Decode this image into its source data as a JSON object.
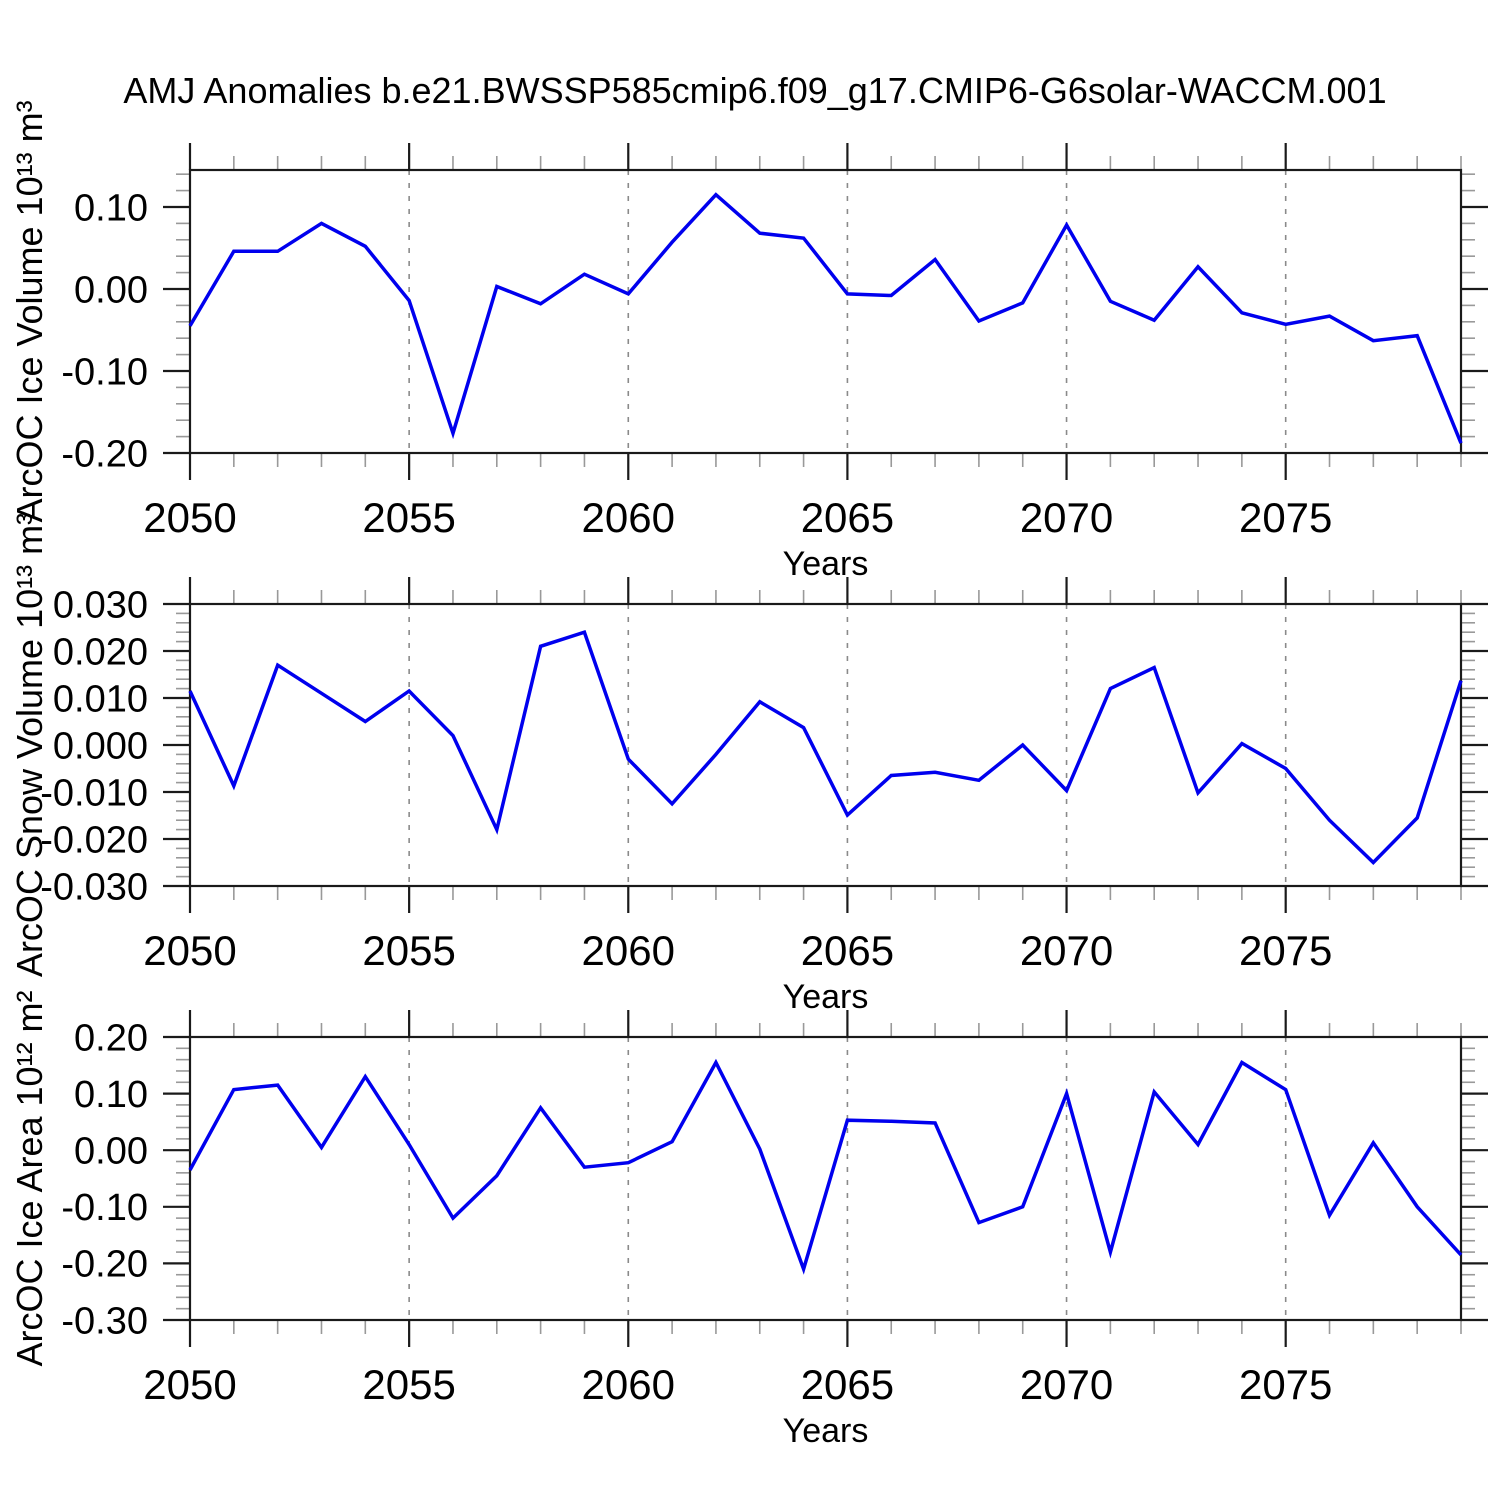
{
  "title": "AMJ Anomalies b.e21.BWSSP585cmip6.f09_g17.CMIP6-G6solar-WACCM.001",
  "colors": {
    "line": "#0000ee",
    "grid": "#8a8a8a",
    "frame": "#1a1a1a",
    "minor_tick": "#999999",
    "text": "#000000"
  },
  "chart_data": [
    {
      "type": "line",
      "name": "arcoc-ice-volume",
      "ylabel": "ArcOC Ice Volume 10¹³ m³",
      "xlabel": "Years",
      "legend": "none",
      "grid": "vertical-dashed",
      "xlim": [
        2050,
        2079
      ],
      "ylim": [
        -0.2,
        0.1451
      ],
      "xticks": [
        2050,
        2055,
        2060,
        2065,
        2070,
        2075
      ],
      "xtick_labels": [
        "2050",
        "2055",
        "2060",
        "2065",
        "2070",
        "2075"
      ],
      "x_minor_step": 1,
      "xgrid": [
        2055,
        2060,
        2065,
        2070,
        2075
      ],
      "yticks": [
        0.1,
        0.0,
        -0.1,
        -0.2
      ],
      "ytick_labels": [
        "0.10",
        "0.00",
        "-0.10",
        "-0.20"
      ],
      "y_minor_step": 0.02,
      "x": [
        2050,
        2051,
        2052,
        2053,
        2054,
        2055,
        2056,
        2057,
        2058,
        2059,
        2060,
        2061,
        2062,
        2063,
        2064,
        2065,
        2066,
        2067,
        2068,
        2069,
        2070,
        2071,
        2072,
        2073,
        2074,
        2075,
        2076,
        2077,
        2078,
        2079
      ],
      "values": [
        -0.045,
        0.046,
        0.046,
        0.08,
        0.052,
        -0.014,
        -0.176,
        0.003,
        -0.018,
        0.018,
        -0.006,
        0.057,
        0.115,
        0.068,
        0.062,
        -0.006,
        -0.008,
        0.036,
        -0.039,
        -0.017,
        0.078,
        -0.015,
        -0.038,
        0.027,
        -0.029,
        -0.043,
        -0.033,
        -0.063,
        -0.057,
        -0.188
      ]
    },
    {
      "type": "line",
      "name": "arcoc-snow-volume",
      "ylabel": "ArcOC Snow Volume 10¹³ m³",
      "xlabel": "Years",
      "legend": "none",
      "grid": "vertical-dashed",
      "xlim": [
        2050,
        2079
      ],
      "ylim": [
        -0.03,
        0.03
      ],
      "xticks": [
        2050,
        2055,
        2060,
        2065,
        2070,
        2075
      ],
      "xtick_labels": [
        "2050",
        "2055",
        "2060",
        "2065",
        "2070",
        "2075"
      ],
      "x_minor_step": 1,
      "xgrid": [
        2055,
        2060,
        2065,
        2070,
        2075
      ],
      "yticks": [
        0.03,
        0.02,
        0.01,
        0.0,
        -0.01,
        -0.02,
        -0.03
      ],
      "ytick_labels": [
        "0.030",
        "0.020",
        "0.010",
        "0.000",
        "-0.010",
        "-0.020",
        "-0.030"
      ],
      "y_minor_step": 0.002,
      "x": [
        2050,
        2051,
        2052,
        2053,
        2054,
        2055,
        2056,
        2057,
        2058,
        2059,
        2060,
        2061,
        2062,
        2063,
        2064,
        2065,
        2066,
        2067,
        2068,
        2069,
        2070,
        2071,
        2072,
        2073,
        2074,
        2075,
        2076,
        2077,
        2078,
        2079
      ],
      "values": [
        0.0115,
        -0.0087,
        0.017,
        0.011,
        0.005,
        0.0115,
        0.002,
        -0.018,
        0.021,
        0.024,
        -0.003,
        -0.0125,
        -0.002,
        0.0092,
        0.0037,
        -0.0149,
        -0.0065,
        -0.0058,
        -0.0075,
        0.0,
        -0.0097,
        0.012,
        0.0165,
        -0.0102,
        0.0003,
        -0.005,
        -0.016,
        -0.025,
        -0.0155,
        0.0137
      ]
    },
    {
      "type": "line",
      "name": "arcoc-ice-area",
      "ylabel": "ArcOC Ice Area 10¹² m²",
      "xlabel": "Years",
      "legend": "none",
      "grid": "vertical-dashed",
      "xlim": [
        2050,
        2079
      ],
      "ylim": [
        -0.3,
        0.2
      ],
      "xticks": [
        2050,
        2055,
        2060,
        2065,
        2070,
        2075
      ],
      "xtick_labels": [
        "2050",
        "2055",
        "2060",
        "2065",
        "2070",
        "2075"
      ],
      "x_minor_step": 1,
      "xgrid": [
        2055,
        2060,
        2065,
        2070,
        2075
      ],
      "yticks": [
        0.2,
        0.1,
        0.0,
        -0.1,
        -0.2,
        -0.3
      ],
      "ytick_labels": [
        "0.20",
        "0.10",
        "0.00",
        "-0.10",
        "-0.20",
        "-0.30"
      ],
      "y_minor_step": 0.02,
      "x": [
        2050,
        2051,
        2052,
        2053,
        2054,
        2055,
        2056,
        2057,
        2058,
        2059,
        2060,
        2061,
        2062,
        2063,
        2064,
        2065,
        2066,
        2067,
        2068,
        2069,
        2070,
        2071,
        2072,
        2073,
        2074,
        2075,
        2076,
        2077,
        2078,
        2079
      ],
      "values": [
        -0.035,
        0.107,
        0.115,
        0.005,
        0.13,
        0.01,
        -0.12,
        -0.045,
        0.075,
        -0.03,
        -0.022,
        0.015,
        0.155,
        0.002,
        -0.21,
        0.053,
        0.051,
        0.048,
        -0.128,
        -0.1,
        0.1,
        -0.18,
        0.103,
        0.01,
        0.155,
        0.107,
        -0.115,
        0.013,
        -0.1,
        -0.185
      ]
    }
  ]
}
